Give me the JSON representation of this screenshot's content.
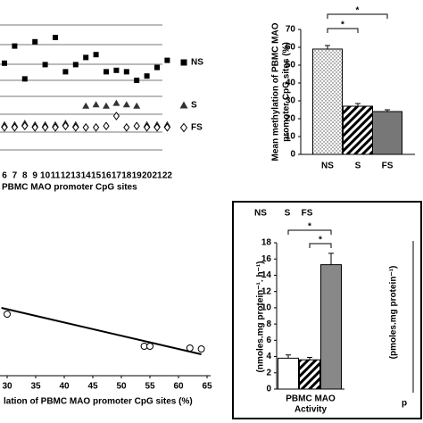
{
  "chart_data": [
    {
      "type": "scatter",
      "x_label": "PBMC MAO promoter CpG sites",
      "categories": [
        "6",
        "7",
        "8",
        "9",
        "10",
        "11",
        "12",
        "13",
        "14",
        "15",
        "16",
        "17",
        "18",
        "19",
        "20",
        "21",
        "22"
      ],
      "ylim": [
        0,
        100
      ],
      "series": [
        {
          "name": "NS",
          "marker": "square",
          "color": "#000000",
          "values": [
            62,
            74,
            51,
            77,
            61,
            80,
            56,
            61,
            66,
            68,
            56,
            57,
            56,
            50,
            53,
            59,
            64
          ]
        },
        {
          "name": "S",
          "marker": "triangle",
          "color": "#333333",
          "values": [
            19,
            19,
            20,
            19,
            19,
            19,
            20,
            19,
            32,
            33,
            32,
            34,
            33,
            32,
            19,
            19,
            19
          ]
        },
        {
          "name": "FS",
          "marker": "diamond",
          "color": "#000000",
          "values": [
            17,
            17,
            18,
            17,
            17,
            17,
            18,
            17,
            17,
            17,
            18,
            25,
            17,
            18,
            17,
            17,
            17
          ]
        }
      ]
    },
    {
      "type": "bar",
      "y_label": [
        "Mean methylation of PBMC MAO",
        "promoter CpG sites (%)"
      ],
      "categories": [
        "NS",
        "S",
        "FS"
      ],
      "values": [
        59,
        27,
        24
      ],
      "errors": [
        2,
        1.5,
        1
      ],
      "fills": [
        "url(#dots)",
        "url(#hatch)",
        "#777777"
      ],
      "ylim": [
        0,
        70
      ],
      "yticks": [
        0,
        10,
        20,
        30,
        40,
        50,
        60,
        70
      ],
      "annotations": [
        "*",
        "*"
      ]
    },
    {
      "type": "scatter",
      "x_label": "lation of PBMC MAO promoter CpG sites (%)",
      "x": [
        30,
        54,
        55,
        62,
        64
      ],
      "values": [
        78,
        42,
        42,
        40,
        39
      ],
      "xlim": [
        30,
        65
      ],
      "xticks": [
        30,
        35,
        40,
        45,
        50,
        55,
        60,
        65
      ],
      "ylim": [
        0,
        100
      ],
      "fit": {
        "x": [
          29,
          64
        ],
        "y": [
          85,
          33
        ]
      }
    },
    {
      "type": "bar",
      "categories": [
        "NS",
        "S",
        "FS"
      ],
      "y_label": "(nmoles.mg protein⁻¹. h⁻¹)",
      "x_label": [
        "PBMC MAO",
        "Activity"
      ],
      "values": [
        3.8,
        3.6,
        15.3
      ],
      "errors": [
        0.4,
        0.3,
        1.4
      ],
      "fills": [
        "#ffffff",
        "url(#hatch)",
        "#888888"
      ],
      "ylim": [
        0,
        18
      ],
      "yticks": [
        0,
        2,
        4,
        6,
        8,
        10,
        12,
        14,
        16,
        18
      ],
      "annotations": [
        "*",
        "*"
      ],
      "side_y_label": "(pmoles.mg protein⁻¹)",
      "side_x_label": "p"
    }
  ]
}
